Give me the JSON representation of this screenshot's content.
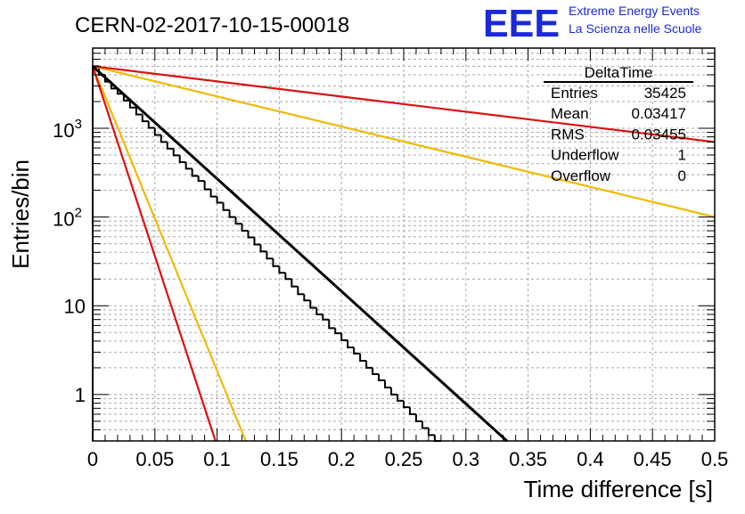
{
  "header": {
    "run_title": "CERN-02-2017-10-15-00018",
    "logo_text": "EEE",
    "org_line1": "Extreme Energy Events",
    "org_line2": "La Scienza nelle Scuole"
  },
  "stats_box": {
    "title": "DeltaTime",
    "rows": [
      {
        "label": "Entries",
        "value": "35425"
      },
      {
        "label": "Mean",
        "value": "0.03417"
      },
      {
        "label": "RMS",
        "value": "0.03455"
      },
      {
        "label": "Underflow",
        "value": "1"
      },
      {
        "label": "Overflow",
        "value": "0"
      }
    ]
  },
  "colors": {
    "histogram": "#000000",
    "fit_line": "#000000",
    "red_lines": "#dd1111",
    "yellow_lines": "#f2b900",
    "grid": "#aaaaaa",
    "logo": "#1a2ad8"
  },
  "chart_data": {
    "type": "line",
    "title": "CERN-02-2017-10-15-00018",
    "xlabel": "Time difference [s]",
    "ylabel": "Entries/bin",
    "xlim": [
      0,
      0.5
    ],
    "ylim": [
      0.3,
      8000
    ],
    "yscale": "log",
    "grid": true,
    "x_ticks": [
      {
        "value": 0,
        "label": "0"
      },
      {
        "value": 0.05,
        "label": "0.05"
      },
      {
        "value": 0.1,
        "label": "0.1"
      },
      {
        "value": 0.15,
        "label": "0.15"
      },
      {
        "value": 0.2,
        "label": "0.2"
      },
      {
        "value": 0.25,
        "label": "0.25"
      },
      {
        "value": 0.3,
        "label": "0.3"
      },
      {
        "value": 0.35,
        "label": "0.35"
      },
      {
        "value": 0.4,
        "label": "0.4"
      },
      {
        "value": 0.45,
        "label": "0.45"
      },
      {
        "value": 0.5,
        "label": "0.5"
      }
    ],
    "y_ticks": [
      {
        "value": 1,
        "base": "1",
        "exp": ""
      },
      {
        "value": 10,
        "base": "10",
        "exp": ""
      },
      {
        "value": 100,
        "base": "10",
        "exp": "2"
      },
      {
        "value": 1000,
        "base": "10",
        "exp": "3"
      }
    ],
    "histogram": {
      "name": "DeltaTime",
      "bin_width": 0.005,
      "values": [
        5000,
        4000,
        3350,
        2800,
        2450,
        2060,
        1710,
        1430,
        1200,
        1010,
        840,
        700,
        590,
        495,
        415,
        350,
        290,
        255,
        205,
        170,
        145,
        120,
        100,
        84,
        70,
        59,
        49,
        41,
        34,
        28,
        23.5,
        20,
        16.5,
        13.5,
        11.5,
        9.5,
        8,
        7,
        5.6,
        4.9,
        4.1,
        3.4,
        2.9,
        2.4,
        2.0,
        1.7,
        1.45,
        1.2,
        1.0,
        0.85,
        0.72,
        0.6,
        0.5,
        0.42,
        0.35,
        0.3
      ]
    },
    "lines": [
      {
        "group": "fit",
        "x": [
          0,
          0.333
        ],
        "y": [
          5000,
          0.3
        ]
      },
      {
        "group": "red",
        "x": [
          0,
          0.5
        ],
        "y": [
          5000,
          700
        ]
      },
      {
        "group": "red",
        "x": [
          0,
          0.0987
        ],
        "y": [
          5000,
          0.3
        ]
      },
      {
        "group": "yellow",
        "x": [
          0,
          0.5
        ],
        "y": [
          5000,
          100
        ]
      },
      {
        "group": "yellow",
        "x": [
          0,
          0.123
        ],
        "y": [
          5000,
          0.3
        ]
      }
    ]
  }
}
